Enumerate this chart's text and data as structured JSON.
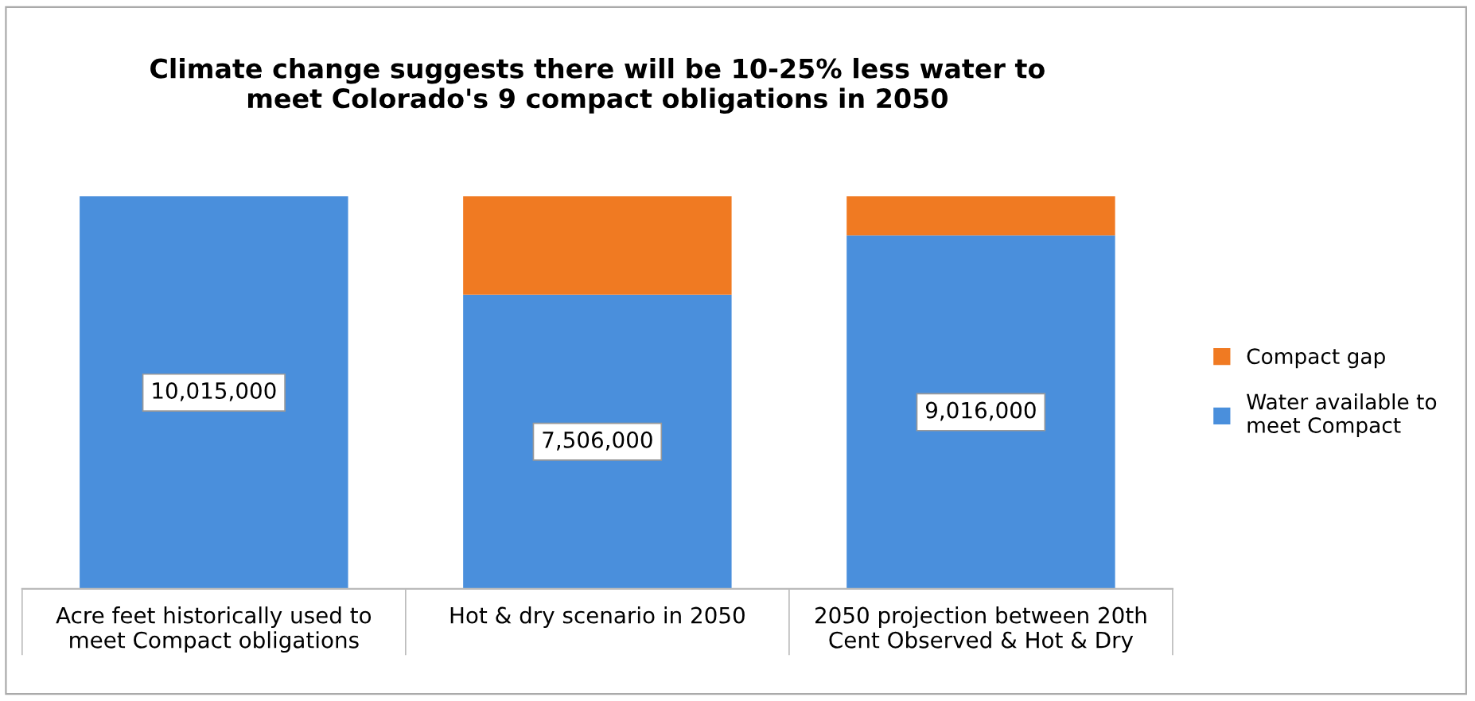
{
  "chart_data": {
    "type": "bar",
    "stacked": true,
    "tick_labels": "x",
    "title": "Climate change suggests there will be 10-25% less water to\nmeet Colorado's 9 compact obligations in 2050",
    "categories": [
      "Acre feet historically used to\nmeet Compact obligations",
      "Hot & dry scenario in 2050",
      "2050 projection between 20th\nCent Observed & Hot & Dry"
    ],
    "series": [
      {
        "name": "Water available to\nmeet Compact",
        "color": "#4a8fdc",
        "values": [
          10015000,
          7506000,
          9016000
        ],
        "value_labels": [
          "10,015,000",
          "7,506,000",
          "9,016,000"
        ]
      },
      {
        "name": "Compact gap",
        "color": "#f07a22",
        "values": [
          0,
          2509000,
          999000
        ]
      }
    ],
    "legend": "right"
  }
}
